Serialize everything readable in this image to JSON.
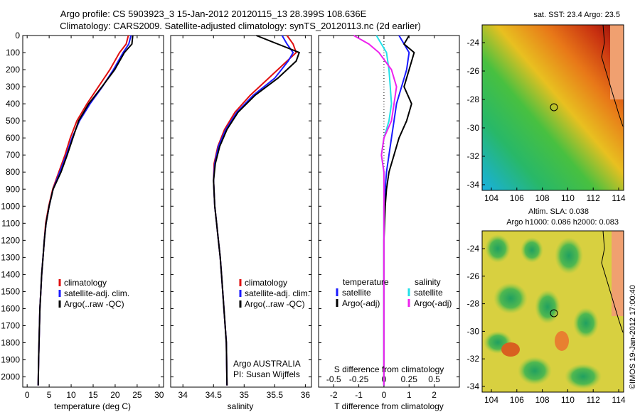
{
  "header": {
    "title_line1": "Argo profile: CS 5903923_3 15-Jan-2012 20120115_13 28.399S 108.636E",
    "title_line2": "Climatology: CARS2009. Satellite-adjusted climatology: synTS_20120113.nc (2d earlier)"
  },
  "colors": {
    "climatology": "#e01010",
    "satellite": "#1a1aff",
    "argo": "#000000",
    "sal_satellite": "#22e0e8",
    "sal_argo": "#ee22ee"
  },
  "depth_axis": {
    "ticks": [
      0,
      100,
      200,
      300,
      400,
      500,
      600,
      700,
      800,
      900,
      1000,
      1100,
      1200,
      1300,
      1400,
      1500,
      1600,
      1700,
      1800,
      1900,
      2000
    ],
    "range": [
      0,
      2060
    ]
  },
  "legend_profile": {
    "items": [
      "climatology",
      "satellite-adj. clim.",
      "Argo(..raw -QC)"
    ]
  },
  "legend_diff": {
    "temperature_title": "temperature",
    "salinity_title": "salinity",
    "temp_items": [
      "satellite",
      "Argo(-adj)"
    ],
    "sal_items": [
      "satellite",
      "Argo(-adj)"
    ]
  },
  "annotations": {
    "argo_line1": "Argo AUSTRALIA",
    "argo_line2": "PI: Susan Wijffels",
    "s_diff_label": "S difference from climatology",
    "credit": "©IMOS 19-Jan-2012 17:00:40"
  },
  "map_sst": {
    "title": "sat. SST: 23.4  Argo: 23.5",
    "x_ticks": [
      104,
      106,
      108,
      110,
      112,
      114
    ],
    "y_ticks": [
      "-24",
      "-26",
      "-28",
      "-30",
      "-32",
      "-34"
    ]
  },
  "map_sla": {
    "title1": "Altim. SLA: 0.038",
    "title2": "Argo h1000: 0.086  h2000: 0.083",
    "x_ticks": [
      104,
      106,
      108,
      110,
      112,
      114
    ],
    "y_ticks": [
      "-24",
      "-26",
      "-28",
      "-30",
      "-32",
      "-34"
    ]
  },
  "chart_data": [
    {
      "type": "line",
      "xlabel": "temperature (deg C)",
      "ylabel": "",
      "xlim": [
        -1,
        31
      ],
      "ylim": [
        2060,
        0
      ],
      "x_ticks": [
        0,
        5,
        10,
        15,
        20,
        25,
        30
      ],
      "series": [
        {
          "name": "climatology",
          "x": [
            23.0,
            22.5,
            21.0,
            18.8,
            16.2,
            13.6,
            11.3,
            9.8,
            8.6,
            7.2,
            5.8,
            4.9,
            4.2,
            3.9,
            3.6,
            3.3,
            3.1,
            2.9,
            2.8,
            2.7,
            2.6,
            2.5
          ],
          "y": [
            0,
            50,
            100,
            200,
            300,
            400,
            500,
            600,
            700,
            800,
            900,
            1000,
            1100,
            1200,
            1300,
            1400,
            1500,
            1600,
            1700,
            1800,
            1900,
            2050
          ]
        },
        {
          "name": "satellite-adj. clim.",
          "x": [
            23.6,
            23.1,
            21.8,
            19.6,
            17.1,
            14.3,
            11.9,
            10.2,
            8.9,
            7.4,
            5.9,
            5.0,
            4.3,
            3.9,
            3.6,
            3.3,
            3.1,
            2.9,
            2.8,
            2.7,
            2.6,
            2.5
          ],
          "y": [
            0,
            50,
            100,
            200,
            300,
            400,
            500,
            600,
            700,
            800,
            900,
            1000,
            1100,
            1200,
            1300,
            1400,
            1500,
            1600,
            1700,
            1800,
            1900,
            2050
          ]
        },
        {
          "name": "Argo(..raw -QC)",
          "x": [
            24.0,
            23.8,
            22.1,
            19.9,
            17.0,
            14.0,
            11.7,
            10.4,
            9.1,
            7.7,
            5.9,
            5.0,
            4.3,
            3.9,
            3.6,
            3.3,
            3.1,
            2.9,
            2.8,
            2.7,
            2.6,
            2.5
          ],
          "y": [
            0,
            50,
            100,
            200,
            300,
            400,
            500,
            600,
            700,
            800,
            900,
            1000,
            1100,
            1200,
            1300,
            1400,
            1500,
            1600,
            1700,
            1800,
            1900,
            2050
          ]
        }
      ]
    },
    {
      "type": "line",
      "xlabel": "salinity",
      "ylabel": "",
      "xlim": [
        33.8,
        36.1
      ],
      "ylim": [
        2060,
        0
      ],
      "x_ticks": [
        34,
        34.5,
        35,
        35.5,
        36
      ],
      "series": [
        {
          "name": "climatology",
          "x": [
            35.7,
            35.8,
            35.85,
            35.7,
            35.4,
            35.1,
            34.85,
            34.68,
            34.57,
            34.51,
            34.5,
            34.52,
            34.55,
            34.58,
            34.61,
            34.63,
            34.65,
            34.67,
            34.69,
            34.71,
            34.72
          ],
          "y": [
            0,
            50,
            100,
            150,
            250,
            350,
            450,
            550,
            650,
            750,
            850,
            1000,
            1100,
            1200,
            1300,
            1400,
            1500,
            1600,
            1700,
            1800,
            2050
          ]
        },
        {
          "name": "satellite-adj. clim.",
          "x": [
            35.62,
            35.7,
            35.8,
            35.72,
            35.5,
            35.15,
            34.88,
            34.7,
            34.58,
            34.52,
            34.5,
            34.52,
            34.55,
            34.58,
            34.61,
            34.63,
            34.65,
            34.67,
            34.69,
            34.71,
            34.72
          ],
          "y": [
            0,
            50,
            100,
            150,
            250,
            350,
            450,
            550,
            650,
            750,
            850,
            1000,
            1100,
            1200,
            1300,
            1400,
            1500,
            1600,
            1700,
            1800,
            2050
          ]
        },
        {
          "name": "Argo(..raw -QC)",
          "x": [
            35.2,
            35.55,
            35.9,
            35.85,
            35.55,
            35.18,
            34.9,
            34.72,
            34.6,
            34.53,
            34.5,
            34.52,
            34.55,
            34.58,
            34.61,
            34.63,
            34.65,
            34.67,
            34.69,
            34.71,
            34.72
          ],
          "y": [
            0,
            50,
            100,
            150,
            250,
            350,
            450,
            550,
            650,
            750,
            850,
            1000,
            1100,
            1200,
            1300,
            1400,
            1500,
            1600,
            1700,
            1800,
            2050
          ]
        }
      ]
    },
    {
      "type": "line",
      "xlabel": "T difference from climatology",
      "ylabel": "",
      "xlim": [
        -2.6,
        3.0
      ],
      "ylim": [
        2060,
        0
      ],
      "x_ticks_T": [
        -2,
        -1,
        0,
        1,
        2
      ],
      "x_ticks_S": [
        "-0.5",
        "-0.25",
        "0",
        "0.25",
        "0.5"
      ],
      "series": [
        {
          "name": "temperature satellite",
          "x": [
            0.6,
            0.8,
            1.0,
            0.9,
            0.7,
            0.5,
            0.4,
            0.3,
            0.2,
            0.1,
            0.05,
            0.0,
            0.0,
            0.0,
            0.0,
            0.0,
            0.0,
            0.0,
            0.0
          ],
          "y": [
            0,
            50,
            100,
            200,
            300,
            400,
            500,
            600,
            700,
            800,
            900,
            1000,
            1200,
            1400,
            1600,
            1800,
            1900,
            2000,
            2050
          ]
        },
        {
          "name": "temperature Argo(-adj)",
          "x": [
            1.0,
            0.8,
            1.2,
            1.0,
            0.8,
            1.1,
            0.9,
            0.6,
            0.4,
            0.2,
            0.1,
            0.05,
            0.0,
            0.0,
            0.0,
            0.0,
            0.0,
            0.0,
            0.0
          ],
          "y": [
            0,
            50,
            100,
            200,
            300,
            400,
            500,
            600,
            700,
            800,
            900,
            1000,
            1200,
            1400,
            1600,
            1800,
            1900,
            2000,
            2050
          ]
        },
        {
          "name": "salinity satellite",
          "x": [
            -0.3,
            -0.1,
            0.1,
            0.2,
            0.25,
            0.3,
            0.2,
            0.0,
            -0.1,
            0.0,
            0.0,
            0.0,
            0.0,
            0.0,
            0.0,
            0.0,
            0.0,
            0.0,
            0.0
          ],
          "y": [
            0,
            50,
            100,
            200,
            300,
            400,
            500,
            600,
            700,
            800,
            900,
            1000,
            1200,
            1400,
            1600,
            1800,
            1900,
            2000,
            2050
          ]
        },
        {
          "name": "salinity Argo(-adj)",
          "x": [
            -1.2,
            -0.6,
            -0.2,
            0.3,
            0.5,
            0.4,
            0.3,
            0.0,
            -0.1,
            0.0,
            0.0,
            0.0,
            0.0,
            0.0,
            0.0,
            0.0,
            0.0,
            0.0,
            0.0
          ],
          "y": [
            0,
            50,
            100,
            200,
            300,
            400,
            500,
            600,
            700,
            800,
            900,
            1000,
            1200,
            1400,
            1600,
            1800,
            1900,
            2000,
            2050
          ]
        }
      ]
    }
  ]
}
